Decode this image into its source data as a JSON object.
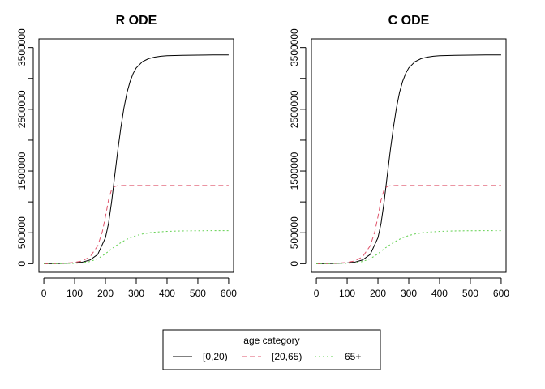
{
  "chart_data": [
    {
      "type": "line",
      "title": "R ODE",
      "xlabel": "",
      "ylabel": "",
      "xlim": [
        -16,
        616
      ],
      "ylim": [
        -140000,
        3640000
      ],
      "xticks": [
        0,
        100,
        200,
        300,
        400,
        500,
        600
      ],
      "yticks": [
        0,
        500000,
        1000000,
        1500000,
        2000000,
        2500000,
        3000000,
        3500000
      ],
      "yticklabels": [
        "0",
        "500000",
        "",
        "1500000",
        "",
        "2500000",
        "",
        "3500000"
      ],
      "grid": false,
      "series": [
        {
          "name": "[0,20)",
          "color": "#000000",
          "dash": "solid",
          "x": [
            0,
            50,
            100,
            125,
            150,
            175,
            200,
            210,
            220,
            230,
            240,
            250,
            260,
            270,
            280,
            290,
            300,
            320,
            340,
            360,
            380,
            400,
            450,
            500,
            550,
            600
          ],
          "y": [
            0,
            2000,
            12000,
            25000,
            60000,
            150000,
            420000,
            650000,
            1000000,
            1420000,
            1830000,
            2200000,
            2520000,
            2770000,
            2950000,
            3080000,
            3170000,
            3270000,
            3320000,
            3345000,
            3360000,
            3368000,
            3375000,
            3378000,
            3380000,
            3381000
          ]
        },
        {
          "name": "[20,65)",
          "color": "#DF536B",
          "dash": "6,4",
          "x": [
            0,
            50,
            100,
            125,
            150,
            175,
            190,
            200,
            210,
            220,
            230,
            240,
            250,
            260,
            300,
            400,
            500,
            600
          ],
          "y": [
            0,
            3000,
            20000,
            45000,
            110000,
            290000,
            520000,
            760000,
            1030000,
            1200000,
            1250000,
            1262000,
            1265000,
            1266000,
            1266000,
            1266000,
            1266000,
            1266000
          ]
        },
        {
          "name": "65+",
          "color": "#61D04F",
          "dash": "2,3",
          "x": [
            0,
            50,
            100,
            125,
            150,
            175,
            200,
            220,
            240,
            260,
            280,
            300,
            320,
            350,
            400,
            450,
            500,
            600
          ],
          "y": [
            0,
            1000,
            6000,
            15000,
            35000,
            80000,
            160000,
            240000,
            310000,
            370000,
            420000,
            455000,
            480000,
            505000,
            523000,
            530000,
            533000,
            535000
          ]
        }
      ]
    },
    {
      "type": "line",
      "title": "C ODE",
      "xlabel": "",
      "ylabel": "",
      "xlim": [
        -16,
        616
      ],
      "ylim": [
        -140000,
        3640000
      ],
      "xticks": [
        0,
        100,
        200,
        300,
        400,
        500,
        600
      ],
      "yticks": [
        0,
        500000,
        1000000,
        1500000,
        2000000,
        2500000,
        3000000,
        3500000
      ],
      "yticklabels": [
        "0",
        "500000",
        "",
        "1500000",
        "",
        "2500000",
        "",
        "3500000"
      ],
      "grid": false,
      "series": [
        {
          "name": "[0,20)",
          "color": "#000000",
          "dash": "solid",
          "x": [
            0,
            50,
            100,
            125,
            150,
            175,
            200,
            210,
            220,
            230,
            240,
            250,
            260,
            270,
            280,
            290,
            300,
            320,
            340,
            360,
            380,
            400,
            450,
            500,
            550,
            600
          ],
          "y": [
            0,
            2000,
            12000,
            25000,
            60000,
            150000,
            420000,
            650000,
            1000000,
            1420000,
            1830000,
            2200000,
            2520000,
            2770000,
            2950000,
            3080000,
            3170000,
            3270000,
            3320000,
            3345000,
            3360000,
            3368000,
            3375000,
            3378000,
            3380000,
            3381000
          ]
        },
        {
          "name": "[20,65)",
          "color": "#DF536B",
          "dash": "6,4",
          "x": [
            0,
            50,
            100,
            125,
            150,
            175,
            190,
            200,
            210,
            220,
            230,
            240,
            250,
            260,
            300,
            400,
            500,
            600
          ],
          "y": [
            0,
            3000,
            20000,
            45000,
            110000,
            290000,
            520000,
            760000,
            1030000,
            1200000,
            1250000,
            1262000,
            1265000,
            1266000,
            1266000,
            1266000,
            1266000,
            1266000
          ]
        },
        {
          "name": "65+",
          "color": "#61D04F",
          "dash": "2,3",
          "x": [
            0,
            50,
            100,
            125,
            150,
            175,
            200,
            220,
            240,
            260,
            280,
            300,
            320,
            350,
            400,
            450,
            500,
            600
          ],
          "y": [
            0,
            1000,
            6000,
            15000,
            35000,
            80000,
            160000,
            240000,
            310000,
            370000,
            420000,
            455000,
            480000,
            505000,
            523000,
            530000,
            533000,
            535000
          ]
        }
      ]
    }
  ],
  "legend": {
    "title": "age category",
    "placement": "bottom-center",
    "entries": [
      {
        "label": "[0,20)",
        "color": "#000000",
        "dash": "solid"
      },
      {
        "label": "[20,65)",
        "color": "#DF536B",
        "dash": "6,4"
      },
      {
        "label": "65+",
        "color": "#61D04F",
        "dash": "2,3"
      }
    ]
  }
}
